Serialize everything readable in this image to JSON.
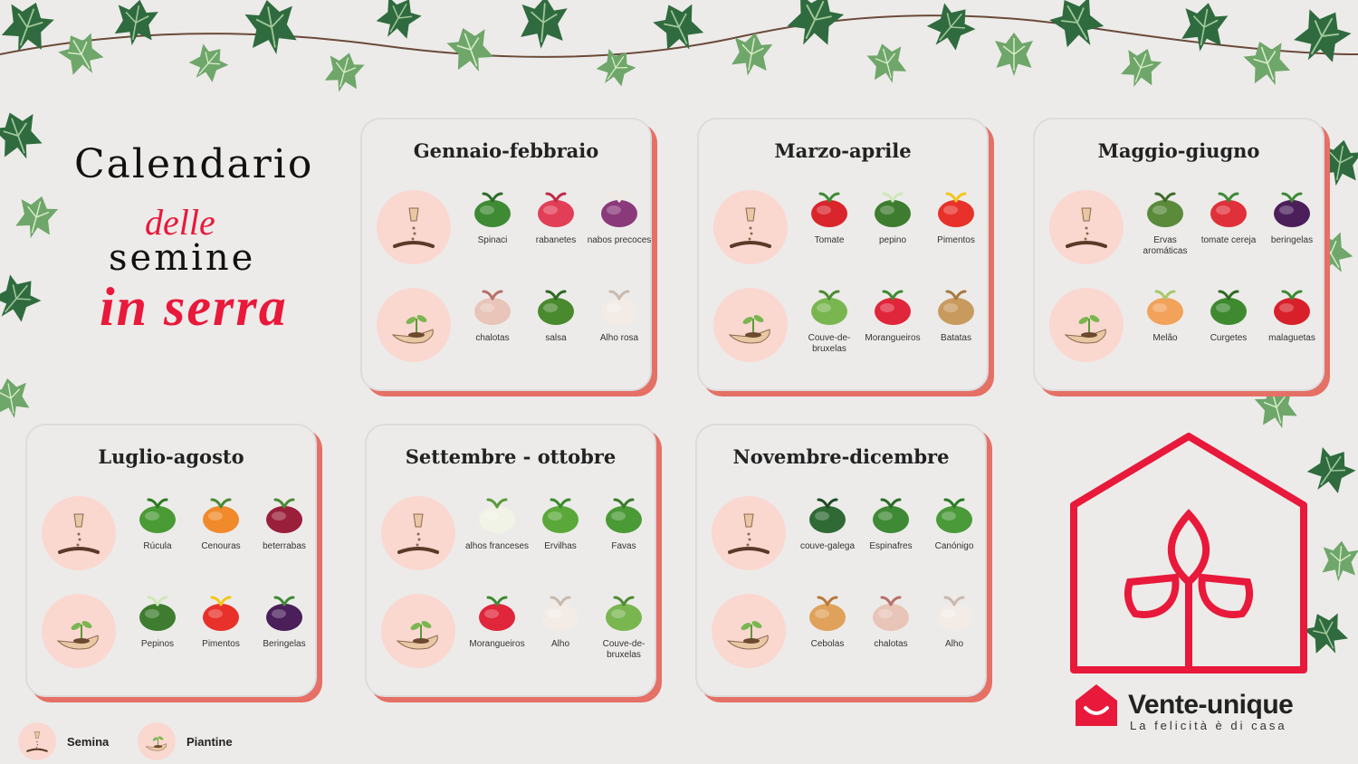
{
  "title": {
    "line1": "Calendario",
    "line2": "delle",
    "line3": "semine",
    "line4": "in serra"
  },
  "legend": {
    "sowing_label": "Semina",
    "seedling_label": "Piantine"
  },
  "brand": {
    "name": "Vente-unique",
    "tagline": "La felicità è di casa"
  },
  "colors": {
    "accent": "#e8193b",
    "card_shadow": "#e57066",
    "circle_bg": "#fad8d0",
    "background": "#ecebe9"
  },
  "cards": [
    {
      "title": "Gennaio-febbraio",
      "row1": [
        {
          "label": "Spinaci",
          "icon": "spinach-icon"
        },
        {
          "label": "rabanetes",
          "icon": "radish-icon"
        },
        {
          "label": "nabos precoces",
          "icon": "turnip-icon"
        }
      ],
      "row2": [
        {
          "label": "chalotas",
          "icon": "shallot-icon"
        },
        {
          "label": "salsa",
          "icon": "parsley-icon"
        },
        {
          "label": "Alho rosa",
          "icon": "garlic-icon"
        }
      ]
    },
    {
      "title": "Marzo-aprile",
      "row1": [
        {
          "label": "Tomate",
          "icon": "tomato-icon"
        },
        {
          "label": "pepino",
          "icon": "cucumber-icon"
        },
        {
          "label": "Pimentos",
          "icon": "pepper-icon"
        }
      ],
      "row2": [
        {
          "label": "Couve-de-bruxelas",
          "icon": "brussels-sprouts-icon"
        },
        {
          "label": "Morangueiros",
          "icon": "strawberry-icon"
        },
        {
          "label": "Batatas",
          "icon": "potato-icon"
        }
      ]
    },
    {
      "title": "Maggio-giugno",
      "row1": [
        {
          "label": "Ervas aromáticas",
          "icon": "herbs-icon"
        },
        {
          "label": "tomate cereja",
          "icon": "cherry-tomato-icon"
        },
        {
          "label": "beringelas",
          "icon": "eggplant-icon"
        }
      ],
      "row2": [
        {
          "label": "Melão",
          "icon": "melon-icon"
        },
        {
          "label": "Curgetes",
          "icon": "zucchini-icon"
        },
        {
          "label": "malaguetas",
          "icon": "chili-icon"
        }
      ]
    },
    {
      "title": "Luglio-agosto",
      "row1": [
        {
          "label": "Rúcula",
          "icon": "arugula-icon"
        },
        {
          "label": "Cenouras",
          "icon": "carrot-icon"
        },
        {
          "label": "beterrabas",
          "icon": "beet-icon"
        }
      ],
      "row2": [
        {
          "label": "Pepinos",
          "icon": "cucumber-icon"
        },
        {
          "label": "Pimentos",
          "icon": "pepper-icon"
        },
        {
          "label": "Beringelas",
          "icon": "eggplant-icon"
        }
      ]
    },
    {
      "title": "Settembre - ottobre",
      "row1": [
        {
          "label": "alhos franceses",
          "icon": "leek-icon"
        },
        {
          "label": "Ervilhas",
          "icon": "peas-icon"
        },
        {
          "label": "Favas",
          "icon": "beans-icon"
        }
      ],
      "row2": [
        {
          "label": "Morangueiros",
          "icon": "strawberry-icon"
        },
        {
          "label": "Alho",
          "icon": "garlic-icon"
        },
        {
          "label": "Couve-de-bruxelas",
          "icon": "brussels-sprouts-icon"
        }
      ]
    },
    {
      "title": "Novembre-dicembre",
      "row1": [
        {
          "label": "couve-galega",
          "icon": "kale-icon"
        },
        {
          "label": "Espinafres",
          "icon": "spinach-icon"
        },
        {
          "label": "Canónigo",
          "icon": "lambs-lettuce-icon"
        }
      ],
      "row2": [
        {
          "label": "Cebolas",
          "icon": "onion-icon"
        },
        {
          "label": "chalotas",
          "icon": "shallot-icon"
        },
        {
          "label": "Alho",
          "icon": "garlic-icon"
        }
      ]
    }
  ]
}
